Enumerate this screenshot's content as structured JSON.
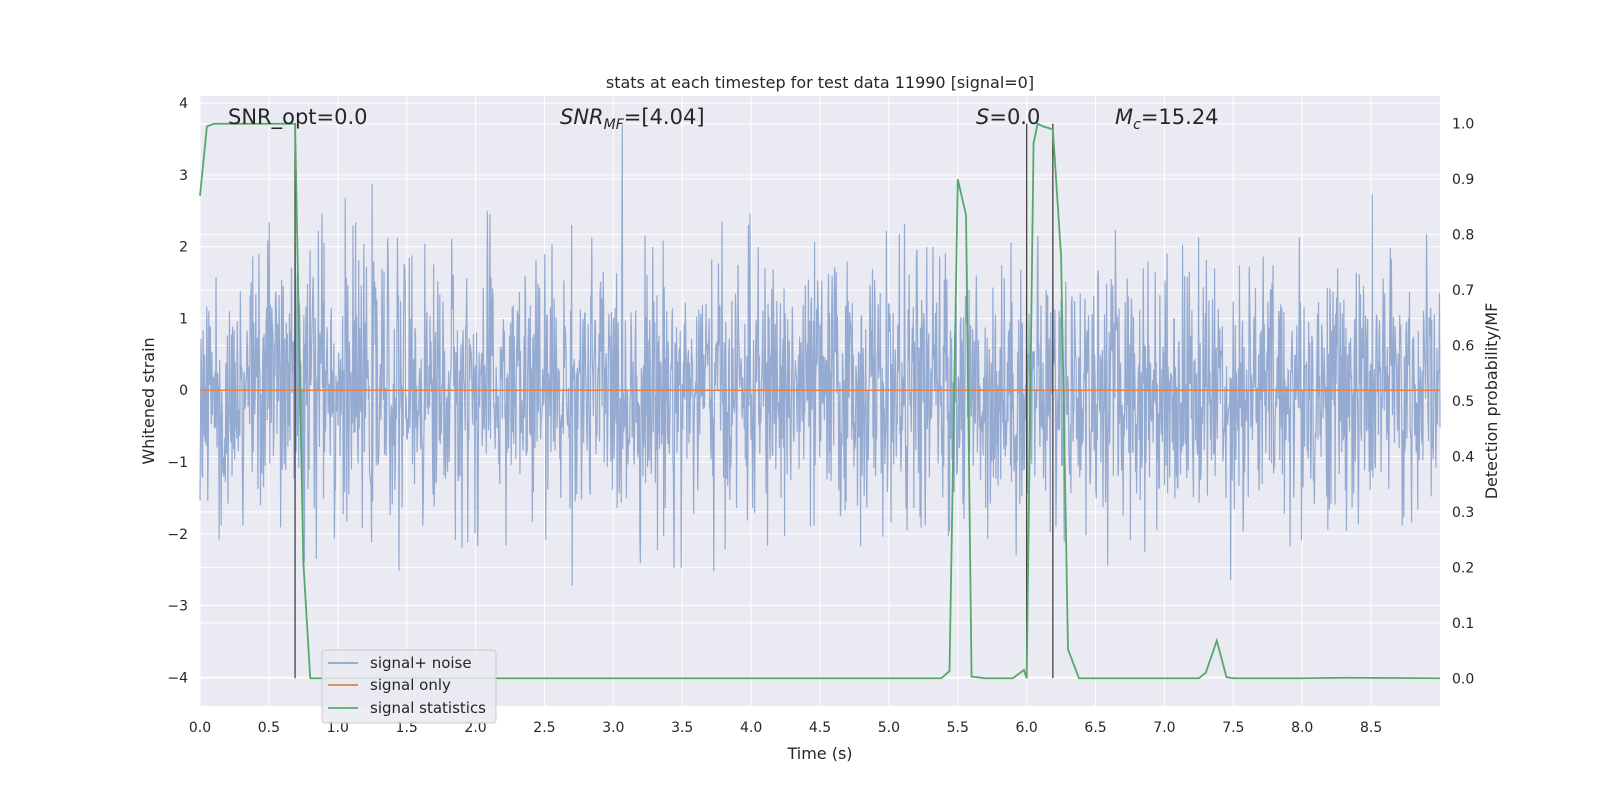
{
  "chart_data": {
    "type": "line",
    "title": "stats at each timestep for test data 11990 [signal=0]",
    "xlabel": "Time (s)",
    "ylabel_left": "Whitened strain",
    "ylabel_right": "Detection probability/MF",
    "xlim": [
      0.0,
      9.0
    ],
    "ylim_left": [
      -4.4,
      4.1
    ],
    "ylim_right": [
      -0.05,
      1.05
    ],
    "x_ticks": [
      "0.0",
      "0.5",
      "1.0",
      "1.5",
      "2.0",
      "2.5",
      "3.0",
      "3.5",
      "4.0",
      "4.5",
      "5.0",
      "5.5",
      "6.0",
      "6.5",
      "7.0",
      "7.5",
      "8.0",
      "8.5"
    ],
    "y_ticks_left": [
      "4",
      "3",
      "2",
      "1",
      "0",
      "−1",
      "−2",
      "−3",
      "−4"
    ],
    "y_ticks_right": [
      "1.0",
      "0.9",
      "0.8",
      "0.7",
      "0.6",
      "0.5",
      "0.4",
      "0.3",
      "0.2",
      "0.1",
      "0.0"
    ],
    "grid": true,
    "legend_position": "lower-left",
    "annotations": {
      "snr_opt": "SNR_opt=0.0",
      "snr_mf_main": "SNR",
      "snr_mf_sub": "MF",
      "snr_mf_value": "=[4.04]",
      "s_var": "S",
      "s_value": "=0.0",
      "mc_main": "M",
      "mc_sub": "c",
      "mc_value": "=15.24"
    },
    "vertical_markers_x": [
      0.69,
      6.0,
      6.19
    ],
    "series": [
      {
        "name": "signal+ noise",
        "color": "#8fa6cf",
        "axis": "left",
        "description": "noisy whitened strain, roughly within ±2.3 with spikes to about ±3.7",
        "envelope_std": 0.9,
        "spike_max": 3.7
      },
      {
        "name": "signal only",
        "color": "#dd8452",
        "axis": "left",
        "x": [
          0.0,
          9.0
        ],
        "y": [
          0.0,
          0.0
        ]
      },
      {
        "name": "signal statistics",
        "color": "#55a868",
        "axis": "right",
        "x": [
          0.0,
          0.05,
          0.1,
          0.2,
          0.3,
          0.4,
          0.5,
          0.6,
          0.69,
          0.75,
          0.8,
          0.85,
          1.0,
          2.0,
          3.0,
          4.0,
          5.0,
          5.38,
          5.44,
          5.5,
          5.56,
          5.6,
          5.7,
          5.8,
          5.9,
          5.98,
          6.0,
          6.05,
          6.08,
          6.12,
          6.19,
          6.25,
          6.3,
          6.38,
          6.5,
          7.0,
          7.25,
          7.3,
          7.38,
          7.45,
          7.5,
          8.0,
          8.3,
          9.0
        ],
        "y": [
          0.87,
          0.995,
          1.0,
          1.0,
          1.0,
          1.0,
          1.0,
          1.0,
          1.0,
          0.21,
          0.0,
          0.0,
          0.0,
          0.0,
          0.0,
          0.0,
          0.0,
          0.0,
          0.013,
          0.9,
          0.835,
          0.003,
          0.0,
          0.0,
          0.0,
          0.015,
          0.0,
          0.965,
          1.0,
          0.995,
          0.99,
          0.76,
          0.052,
          0.0,
          0.0,
          0.0,
          0.0,
          0.01,
          0.068,
          0.002,
          0.0,
          0.0,
          0.001,
          0.0
        ]
      }
    ]
  }
}
